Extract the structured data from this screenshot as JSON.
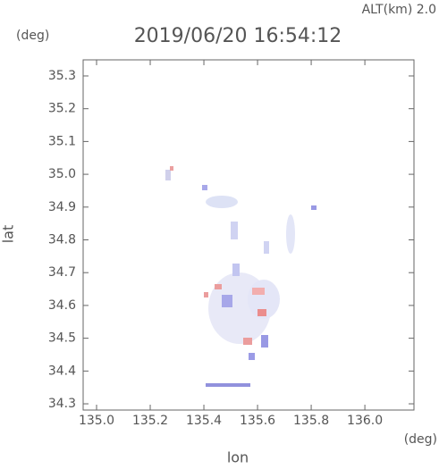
{
  "chart_data": {
    "type": "scatter",
    "title": "2019/06/20 16:54:12",
    "subtitle": "ALT(km) 2.0",
    "y_unit": "(deg)",
    "x_unit": "(deg)",
    "x_label": "lon",
    "y_label": "lat",
    "xlim": [
      134.95,
      136.183
    ],
    "ylim": [
      34.281,
      35.349
    ],
    "xticks": [
      {
        "value": 135,
        "label": "135.0"
      },
      135.2,
      135.4,
      135.6,
      135.8,
      {
        "value": 136,
        "label": "136.0"
      }
    ],
    "yticks": [
      35.3,
      35.2,
      35.1,
      {
        "value": 35,
        "label": "35.0"
      },
      34.9,
      34.8,
      34.7,
      34.6,
      34.5,
      34.4,
      34.3
    ]
  }
}
